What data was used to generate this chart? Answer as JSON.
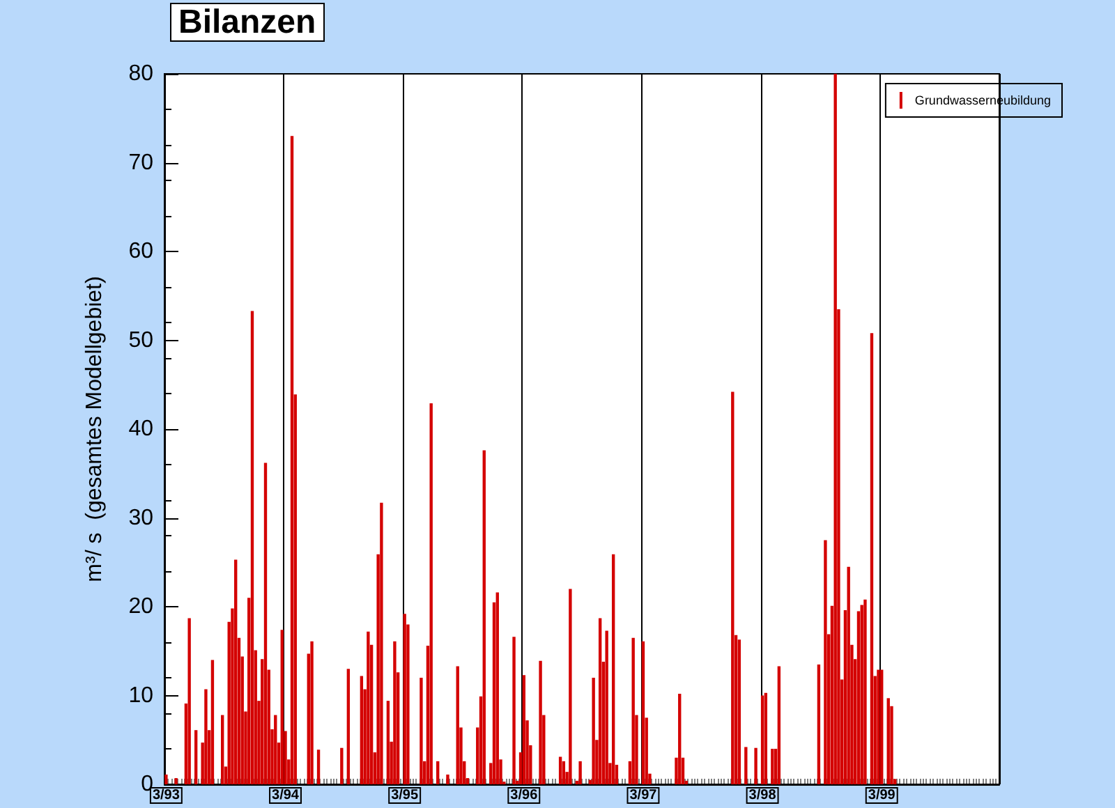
{
  "chart_data": {
    "type": "bar",
    "title": "Bilanzen",
    "ylabel": "m³/ s  (gesamtes Modellgebiet)",
    "categories": [
      "3/93",
      null,
      null,
      null,
      null,
      null,
      null,
      null,
      null,
      null,
      null,
      null,
      null,
      null,
      null,
      null,
      null,
      null,
      null,
      null,
      null,
      null,
      null,
      null,
      null,
      null,
      null,
      null,
      null,
      null,
      null,
      null,
      null,
      null,
      null,
      null,
      "3/94",
      null,
      null,
      null,
      null,
      null,
      null,
      null,
      null,
      null,
      null,
      null,
      null,
      null,
      null,
      null,
      null,
      null,
      null,
      null,
      null,
      null,
      null,
      null,
      null,
      null,
      null,
      null,
      null,
      null,
      null,
      null,
      null,
      null,
      null,
      null,
      "3/95",
      null,
      null,
      null,
      null,
      null,
      null,
      null,
      null,
      null,
      null,
      null,
      null,
      null,
      null,
      null,
      null,
      null,
      null,
      null,
      null,
      null,
      null,
      null,
      null,
      null,
      null,
      null,
      null,
      null,
      null,
      null,
      null,
      null,
      null,
      null,
      "3/96",
      null,
      null,
      null,
      null,
      null,
      null,
      null,
      null,
      null,
      null,
      null,
      null,
      null,
      null,
      null,
      null,
      null,
      null,
      null,
      null,
      null,
      null,
      null,
      null,
      null,
      null,
      null,
      null,
      null,
      null,
      null,
      null,
      null,
      null,
      null,
      "3/97",
      null,
      null,
      null,
      null,
      null,
      null,
      null,
      null,
      null,
      null,
      null,
      null,
      null,
      null,
      null,
      null,
      null,
      null,
      null,
      null,
      null,
      null,
      null,
      null,
      null,
      null,
      null,
      null,
      null,
      null,
      null,
      null,
      null,
      null,
      null,
      "3/98",
      null,
      null,
      null,
      null,
      null,
      null,
      null,
      null,
      null,
      null,
      null,
      null,
      null,
      null,
      null,
      null,
      null,
      null,
      null,
      null,
      null,
      null,
      null,
      null,
      null,
      null,
      null,
      null,
      null,
      null,
      null,
      null,
      null,
      null,
      null,
      "3/99",
      null,
      null,
      null,
      null,
      null,
      null,
      null,
      null,
      null,
      null,
      null,
      null,
      null,
      null,
      null,
      null,
      null,
      null,
      null,
      null,
      null,
      null,
      null,
      null,
      null,
      null,
      null,
      null,
      null,
      null,
      null,
      null,
      null,
      null,
      null
    ],
    "series": [
      {
        "name": "Grundwasserneubildung",
        "color": "#d40000",
        "values": [
          1.1,
          0,
          0,
          0.7,
          0,
          0,
          9.1,
          18.7,
          0,
          6.1,
          0,
          4.7,
          10.7,
          6.1,
          14.0,
          0,
          0,
          7.8,
          2.0,
          18.3,
          19.8,
          25.3,
          16.5,
          14.4,
          8.2,
          21.0,
          53.3,
          15.1,
          9.4,
          14.1,
          36.2,
          12.9,
          6.2,
          7.8,
          4.7,
          17.4,
          6.0,
          2.8,
          73.0,
          43.9,
          0,
          0,
          0,
          14.7,
          16.1,
          0,
          3.9,
          0,
          0,
          0,
          0,
          0,
          0,
          4.1,
          0,
          13.0,
          0,
          0,
          0,
          12.2,
          10.7,
          17.2,
          15.7,
          3.6,
          25.9,
          31.7,
          0,
          9.4,
          4.8,
          16.1,
          12.6,
          0,
          19.2,
          18.0,
          0,
          0,
          0,
          12.0,
          2.6,
          15.6,
          42.9,
          0,
          2.6,
          0,
          0,
          1.1,
          0,
          0,
          13.3,
          6.4,
          2.6,
          0.7,
          0,
          0,
          6.4,
          9.9,
          37.6,
          0,
          2.4,
          20.5,
          21.6,
          2.8,
          0.3,
          0,
          0,
          16.6,
          0.4,
          3.6,
          12.3,
          7.2,
          4.4,
          0,
          0,
          13.9,
          7.8,
          0,
          0,
          0,
          0,
          3.1,
          2.6,
          1.4,
          22.0,
          0,
          0.4,
          2.6,
          0,
          0,
          0.5,
          12.0,
          5.0,
          18.7,
          13.8,
          17.3,
          2.4,
          25.9,
          2.2,
          0,
          0,
          0,
          2.6,
          16.5,
          7.8,
          0,
          16.1,
          7.5,
          1.2,
          0,
          0,
          0,
          0,
          0,
          0,
          0,
          3.0,
          10.2,
          3.0,
          0.4,
          0,
          0,
          0,
          0,
          0,
          0,
          0,
          0,
          0,
          0,
          0,
          0,
          0,
          44.2,
          16.8,
          16.3,
          0,
          4.2,
          0,
          0,
          4.1,
          0,
          10.0,
          10.3,
          0,
          4.0,
          4.0,
          13.3,
          0,
          0,
          0,
          0,
          0,
          0,
          0,
          0,
          0,
          0,
          0,
          13.5,
          0,
          27.5,
          16.9,
          20.1,
          80,
          53.5,
          11.8,
          19.6,
          24.5,
          15.7,
          14.1,
          19.5,
          20.2,
          20.8,
          0,
          50.8,
          12.2,
          12.9,
          12.9,
          0,
          9.7,
          8.8,
          0.6,
          0,
          0,
          0,
          0,
          0,
          0,
          0,
          0,
          0,
          0,
          0,
          0,
          0,
          0,
          0,
          0,
          0,
          0,
          0,
          0,
          0,
          0,
          0,
          0,
          0,
          0,
          0,
          0,
          0,
          0,
          0
        ]
      }
    ],
    "ylim": [
      0,
      80
    ],
    "yticks": [
      0,
      10,
      20,
      30,
      40,
      50,
      60,
      70,
      80
    ],
    "grid": "x",
    "legend": "top right"
  }
}
